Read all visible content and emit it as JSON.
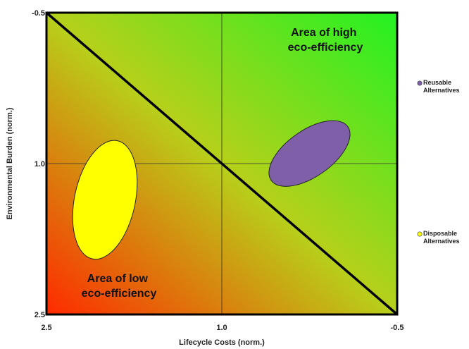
{
  "chart_data": {
    "type": "scatter",
    "title": "",
    "xlabel": "Lifecycle Costs (norm.)",
    "ylabel": "Environmental Burden (norm.)",
    "x_ticks": [
      "2.5",
      "1.0",
      "-0.5"
    ],
    "y_ticks": [
      "-0.5",
      "1.0",
      "2.5"
    ],
    "xlim": [
      2.5,
      -0.5
    ],
    "ylim": [
      -0.5,
      2.5
    ],
    "reference_line": {
      "from": [
        2.5,
        -0.5
      ],
      "to": [
        -0.5,
        2.5
      ]
    },
    "crosshair": {
      "x": 1.0,
      "y": 1.0
    },
    "grid": false,
    "background": {
      "low_corner_color": "#ff2a00",
      "high_corner_color": "#22f222"
    },
    "annotations": [
      {
        "id": "high",
        "lines": [
          "Area of high",
          "eco-efficiency"
        ],
        "position": "top-right"
      },
      {
        "id": "low",
        "lines": [
          "Area of low",
          "eco-efficiency"
        ],
        "position": "bottom-left"
      }
    ],
    "series": [
      {
        "name": "Reusable Alternatives",
        "legend_lines": [
          "Reusable",
          "Alternatives"
        ],
        "color": "#7f5fa8",
        "region": {
          "center": [
            0.25,
            0.9
          ],
          "radius_x": 0.4,
          "radius_y": 0.23,
          "rotation": -35
        }
      },
      {
        "name": "Disposable Alternatives",
        "legend_lines": [
          "Disposable",
          "Alternatives"
        ],
        "color": "#ffff00",
        "region": {
          "center": [
            2.0,
            1.36
          ],
          "radius_x": 0.26,
          "radius_y": 0.6,
          "rotation": 12
        }
      }
    ],
    "legend_position": "right"
  }
}
